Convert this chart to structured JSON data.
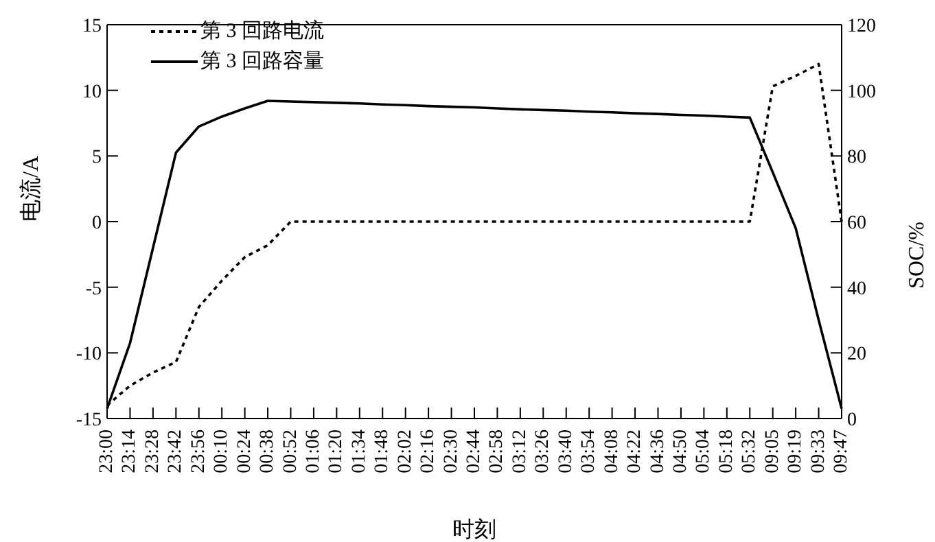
{
  "chart_data": {
    "type": "line",
    "xlabel": "时刻",
    "ylabel": "电流/A",
    "y2label": "SOC/%",
    "categories": [
      "23:00",
      "23:14",
      "23:28",
      "23:42",
      "23:56",
      "00:10",
      "00:24",
      "00:38",
      "00:52",
      "01:06",
      "01:20",
      "01:34",
      "01:48",
      "02:02",
      "02:16",
      "02:30",
      "02:44",
      "02:58",
      "03:12",
      "03:26",
      "03:40",
      "03:54",
      "04:08",
      "04:22",
      "04:36",
      "04:50",
      "05:04",
      "05:18",
      "05:32",
      "09:05",
      "09:19",
      "09:33",
      "09:47"
    ],
    "series": [
      {
        "name": "第 3 回路电流",
        "color": "#000000",
        "line_style": "dotted",
        "values": [
          -14,
          -12.5,
          -11.5,
          -10.7,
          -6.5,
          -4.5,
          -2.7,
          -1.8,
          0,
          0,
          0,
          0,
          0,
          0,
          0,
          0,
          0,
          0,
          0,
          0,
          0,
          0,
          0,
          0,
          0,
          0,
          0,
          0,
          0,
          10.3,
          11.1,
          12,
          0
        ]
      },
      {
        "name": "第 3 回路容量",
        "color": "#000000",
        "line_style": "solid",
        "axis": "y2",
        "values": [
          3,
          23,
          52,
          81,
          89,
          92,
          94.5,
          96.8,
          96.6,
          96.4,
          96.2,
          96,
          95.7,
          95.5,
          95.2,
          95,
          94.8,
          94.5,
          94.2,
          94,
          93.8,
          93.5,
          93.3,
          93,
          92.8,
          92.5,
          92.3,
          92,
          91.7,
          75,
          58,
          30,
          3
        ]
      }
    ],
    "ylim": [
      -15,
      15
    ],
    "yticks": [
      -15,
      -10,
      -5,
      0,
      5,
      10,
      15
    ],
    "y2lim": [
      0,
      120
    ],
    "y2ticks": [
      0,
      20,
      40,
      60,
      80,
      100,
      120
    ],
    "legend": "top left",
    "marker": "none",
    "grid": false
  }
}
